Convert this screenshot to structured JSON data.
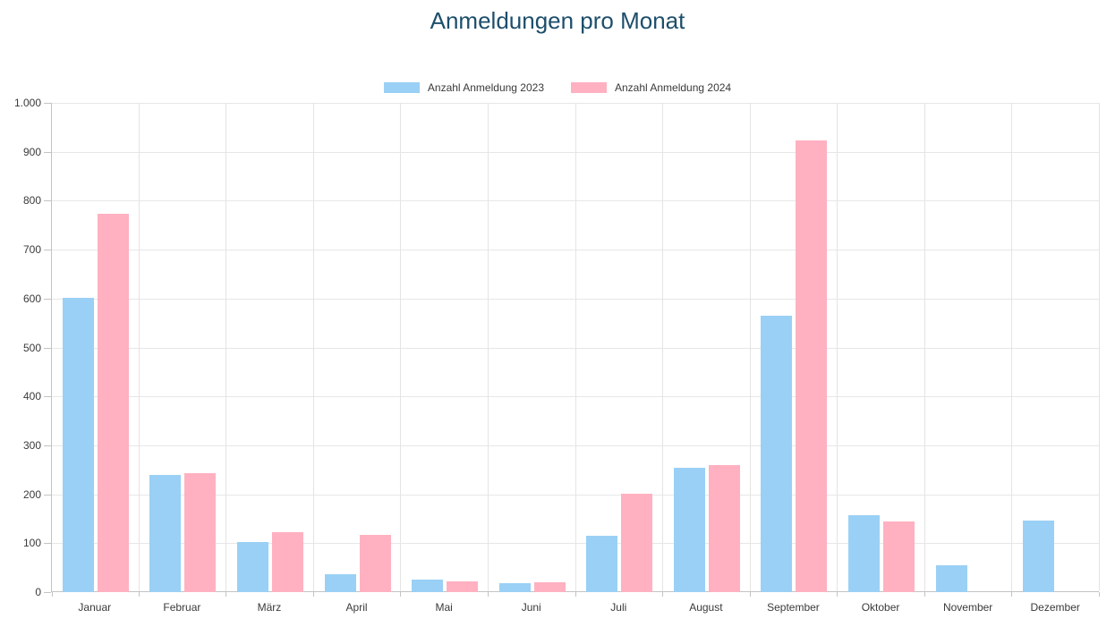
{
  "chart_data": {
    "type": "bar",
    "title": "Anmeldungen pro Monat",
    "title_color": "#1d4e6b",
    "categories": [
      "Januar",
      "Februar",
      "März",
      "April",
      "Mai",
      "Juni",
      "Juli",
      "August",
      "September",
      "Oktober",
      "November",
      "Dezember"
    ],
    "series": [
      {
        "name": "Anzahl Anmeldung 2023",
        "color": "#9ad0f5",
        "values": [
          602,
          240,
          102,
          36,
          25,
          18,
          116,
          255,
          565,
          158,
          54,
          146
        ]
      },
      {
        "name": "Anzahl Anmeldung 2024",
        "color": "#ffb1c1",
        "values": [
          773,
          243,
          122,
          117,
          22,
          21,
          202,
          260,
          923,
          144,
          0,
          0
        ]
      }
    ],
    "y_axis": {
      "min": 0,
      "max": 1000,
      "step": 100,
      "tick_labels": [
        "0",
        "100",
        "200",
        "300",
        "400",
        "500",
        "600",
        "700",
        "800",
        "900",
        "1.000"
      ]
    },
    "xlabel": "",
    "ylabel": "",
    "legend_position": "top",
    "grid": true,
    "style": {
      "grid_color": "#e7e7e7",
      "axis_color": "#c3c3c3",
      "text_color": "#3a3a3a"
    }
  }
}
